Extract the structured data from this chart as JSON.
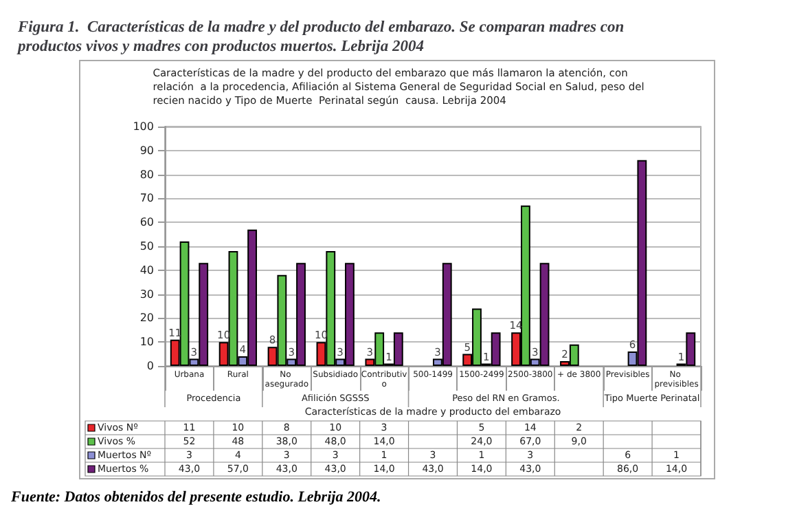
{
  "chart_data": {
    "type": "bar",
    "title": "Figura 1.  Características de la madre y del producto del embarazo. Se comparan madres con productos vivos y madres con productos muertos. Lebrija 2004",
    "subtitle": "Características de la madre y del producto del embarazo que más llamaron la atención, con\nrelación  a la procedencia, Afiliación al Sistema General de Seguridad Social en Salud, peso del\nrecien nacido y Tipo de Muerte  Perinatal según  causa. Lebrija 2004",
    "xlabel": "Características de la madre y producto del embarazo",
    "categories": [
      "Urbana",
      "Rural",
      "No asegurado",
      "Subsidiado",
      "Contributivo",
      "500-1499",
      "1500-2499",
      "2500-3800",
      "+ de 3800",
      "Previsibles",
      "No previsibles"
    ],
    "series": [
      {
        "name": "Vivos Nº",
        "color": "#e8262b",
        "values": [
          11,
          10,
          8,
          10,
          3,
          null,
          5,
          14,
          2,
          null,
          null
        ],
        "data_labels": true,
        "value_labels": [
          "11",
          "10",
          "8",
          "10",
          "3",
          null,
          "5",
          "14",
          "2",
          null,
          null
        ]
      },
      {
        "name": "Vivos %",
        "color": "#5cc04a",
        "values": [
          52,
          48,
          38,
          48,
          14,
          null,
          24,
          67,
          9,
          null,
          null
        ],
        "value_labels": [
          "52",
          "48",
          "38,0",
          "48,0",
          "14,0",
          null,
          "24,0",
          "67,0",
          "9,0",
          null,
          null
        ]
      },
      {
        "name": "Muertos Nº",
        "color": "#8c8fd4",
        "values": [
          3,
          4,
          3,
          3,
          1,
          3,
          1,
          3,
          null,
          6,
          1
        ],
        "data_labels": true,
        "value_labels": [
          "3",
          "4",
          "3",
          "3",
          "1",
          "3",
          "1",
          "3",
          null,
          "6",
          "1"
        ]
      },
      {
        "name": "Muertos %",
        "color": "#70207a",
        "values": [
          43,
          57,
          43,
          43,
          14,
          43,
          14,
          43,
          null,
          86,
          14
        ],
        "value_labels": [
          "43,0",
          "57,0",
          "43,0",
          "43,0",
          "14,0",
          "43,0",
          "14,0",
          "43,0",
          null,
          "86,0",
          "14,0"
        ]
      }
    ],
    "ylim": [
      0,
      100
    ],
    "yticks": [
      0,
      10,
      20,
      30,
      40,
      50,
      60,
      70,
      80,
      90,
      100
    ],
    "grid": "y",
    "legend": "bottom",
    "annotations": [
      "Procedencia",
      "Afilición SGSSS",
      "Peso del RN en Gramos.",
      "Tipo Muerte Perinatal",
      "Fuente: Datos obtenidos del presente estudio. Lebrija 2004."
    ]
  }
}
